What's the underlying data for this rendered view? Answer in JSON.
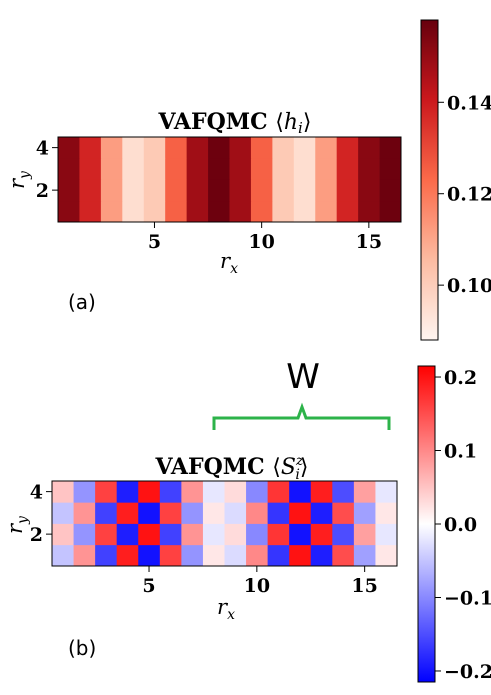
{
  "chart_data": [
    {
      "type": "heatmap",
      "title": "VAFQMC ⟨hᵢ⟩",
      "title_main": "VAFQMC",
      "title_quantity": "h",
      "title_index": "i",
      "panel_label": "(a)",
      "xlabel_base": "r",
      "xlabel_sub": "x",
      "ylabel_base": "r",
      "ylabel_sub": "y",
      "xlim": [
        0.5,
        16.5
      ],
      "ylim": [
        0.5,
        4.5
      ],
      "xticks": [
        5,
        10,
        15
      ],
      "yticks": [
        2,
        4
      ],
      "x": [
        1,
        2,
        3,
        4,
        5,
        6,
        7,
        8,
        9,
        10,
        11,
        12,
        13,
        14,
        15,
        16
      ],
      "y": [
        1,
        2,
        3,
        4
      ],
      "values": [
        [
          0.152,
          0.138,
          0.112,
          0.095,
          0.101,
          0.125,
          0.148,
          0.157,
          0.148,
          0.125,
          0.101,
          0.095,
          0.112,
          0.138,
          0.152,
          0.157
        ],
        [
          0.152,
          0.138,
          0.112,
          0.095,
          0.101,
          0.125,
          0.148,
          0.157,
          0.148,
          0.125,
          0.101,
          0.095,
          0.112,
          0.138,
          0.152,
          0.157
        ],
        [
          0.152,
          0.138,
          0.112,
          0.095,
          0.101,
          0.125,
          0.148,
          0.157,
          0.148,
          0.125,
          0.101,
          0.095,
          0.112,
          0.138,
          0.152,
          0.157
        ],
        [
          0.152,
          0.138,
          0.112,
          0.095,
          0.101,
          0.125,
          0.148,
          0.157,
          0.148,
          0.125,
          0.101,
          0.095,
          0.112,
          0.138,
          0.152,
          0.157
        ]
      ],
      "colorbar": {
        "colormap": "Reds",
        "range": [
          0.088,
          0.158
        ],
        "ticks": [
          0.1,
          0.12,
          0.14
        ],
        "tick_labels": [
          "0.10",
          "0.12",
          "0.14"
        ]
      }
    },
    {
      "type": "heatmap",
      "title": "VAFQMC ⟨Sᵢᶻ⟩",
      "title_main": "VAFQMC",
      "title_quantity": "S",
      "title_index": "i",
      "title_super": "z",
      "panel_label": "(b)",
      "annotation": "W",
      "annotation_span_x": [
        7.5,
        16.5
      ],
      "xlabel_base": "r",
      "xlabel_sub": "x",
      "ylabel_base": "r",
      "ylabel_sub": "y",
      "xlim": [
        0.5,
        16.5
      ],
      "ylim": [
        0.5,
        4.5
      ],
      "xticks": [
        5,
        10,
        15
      ],
      "yticks": [
        2,
        4
      ],
      "x": [
        1,
        2,
        3,
        4,
        5,
        6,
        7,
        8,
        9,
        10,
        11,
        12,
        13,
        14,
        15,
        16
      ],
      "y": [
        1,
        2,
        3,
        4
      ],
      "values": [
        [
          -0.05,
          0.09,
          -0.16,
          0.19,
          -0.2,
          0.16,
          -0.09,
          0.02,
          -0.03,
          0.1,
          -0.17,
          0.2,
          -0.19,
          0.15,
          -0.08,
          0.02
        ],
        [
          0.05,
          -0.09,
          0.16,
          -0.19,
          0.2,
          -0.16,
          0.09,
          -0.02,
          0.03,
          -0.1,
          0.17,
          -0.2,
          0.19,
          -0.15,
          0.08,
          -0.02
        ],
        [
          -0.05,
          0.09,
          -0.16,
          0.19,
          -0.2,
          0.16,
          -0.09,
          0.02,
          -0.03,
          0.1,
          -0.17,
          0.2,
          -0.19,
          0.15,
          -0.08,
          0.02
        ],
        [
          0.05,
          -0.09,
          0.16,
          -0.19,
          0.2,
          -0.16,
          0.09,
          -0.02,
          0.03,
          -0.1,
          0.17,
          -0.2,
          0.19,
          -0.15,
          0.08,
          -0.02
        ]
      ],
      "colorbar": {
        "colormap": "bwr",
        "range": [
          -0.215,
          0.215
        ],
        "ticks": [
          -0.2,
          -0.1,
          0.0,
          0.1,
          0.2
        ],
        "tick_labels": [
          "−0.2",
          "−0.1",
          "0.0",
          "0.1",
          "0.2"
        ]
      }
    }
  ],
  "colors": {
    "brace": "#2db34a",
    "annotation_text": "#000000"
  }
}
